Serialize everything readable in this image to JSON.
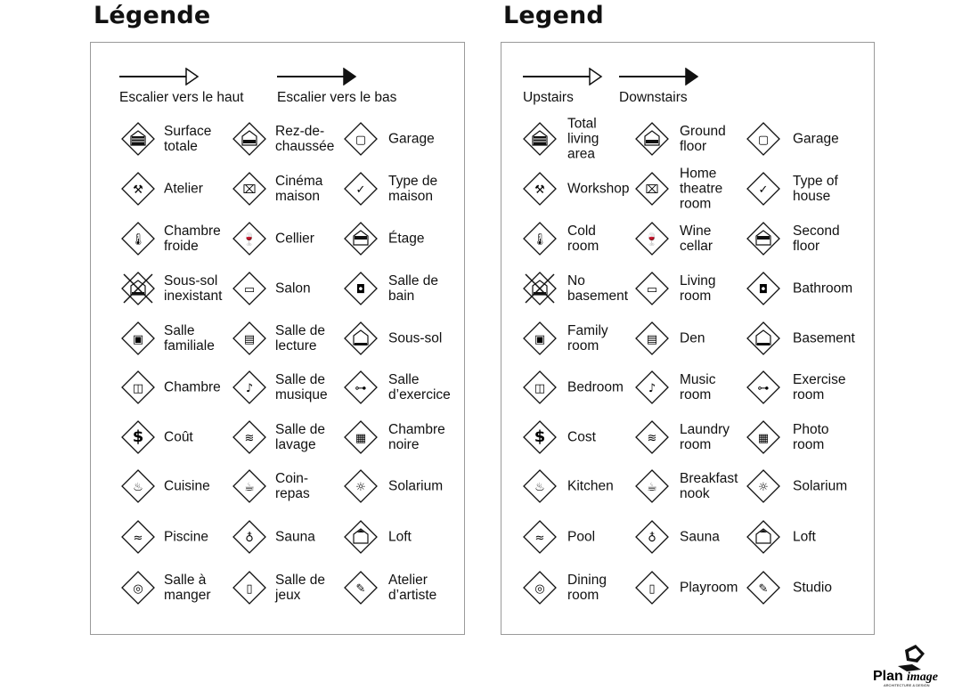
{
  "legends": [
    {
      "title": "Légende",
      "stairs_up": "Escalier vers le haut",
      "stairs_down": "Escalier vers le bas",
      "rows": [
        [
          {
            "label": "Surface\ntotale",
            "icon": "total-area-icon"
          },
          {
            "label": "Rez-de-\nchaussée",
            "icon": "ground-floor-icon"
          },
          {
            "label": "Garage",
            "icon": "garage-icon"
          }
        ],
        [
          {
            "label": "Atelier",
            "icon": "hammer-icon"
          },
          {
            "label": "Cinéma\nmaison",
            "icon": "projector-icon"
          },
          {
            "label": "Type de\nmaison",
            "icon": "house-check-icon"
          }
        ],
        [
          {
            "label": "Chambre\nfroide",
            "icon": "thermometer-icon"
          },
          {
            "label": "Cellier",
            "icon": "wine-icon"
          },
          {
            "label": "Étage",
            "icon": "second-floor-icon"
          }
        ],
        [
          {
            "label": "Sous-sol\ninexistant",
            "icon": "no-basement-icon"
          },
          {
            "label": "Salon",
            "icon": "sofa-icon"
          },
          {
            "label": "Salle de\nbain",
            "icon": "toilet-icon"
          }
        ],
        [
          {
            "label": "Salle\nfamiliale",
            "icon": "tv-icon"
          },
          {
            "label": "Salle de\nlecture",
            "icon": "book-icon"
          },
          {
            "label": "Sous-sol",
            "icon": "basement-icon"
          }
        ],
        [
          {
            "label": "Chambre",
            "icon": "bed-icon"
          },
          {
            "label": "Salle de\nmusique",
            "icon": "music-note-icon"
          },
          {
            "label": "Salle\nd’exercice",
            "icon": "weights-icon"
          }
        ],
        [
          {
            "label": "Coût",
            "icon": "dollar-icon"
          },
          {
            "label": "Salle de\nlavage",
            "icon": "laundry-icon"
          },
          {
            "label": "Chambre\nnoire",
            "icon": "camera-icon"
          }
        ],
        [
          {
            "label": "Cuisine",
            "icon": "pot-icon"
          },
          {
            "label": "Coin-\nrepas",
            "icon": "coffee-icon"
          },
          {
            "label": "Solarium",
            "icon": "sun-icon"
          }
        ],
        [
          {
            "label": "Piscine",
            "icon": "swimmer-icon"
          },
          {
            "label": "Sauna",
            "icon": "sauna-icon"
          },
          {
            "label": "Loft",
            "icon": "loft-icon"
          }
        ],
        [
          {
            "label": "Salle à\nmanger",
            "icon": "plate-icon"
          },
          {
            "label": "Salle de\njeux",
            "icon": "playroom-icon"
          },
          {
            "label": "Atelier\nd’artiste",
            "icon": "palette-icon"
          }
        ]
      ]
    },
    {
      "title": "Legend",
      "stairs_up": "Upstairs",
      "stairs_down": "Downstairs",
      "rows": [
        [
          {
            "label": "Total\nliving\narea",
            "icon": "total-area-icon"
          },
          {
            "label": "Ground\nfloor",
            "icon": "ground-floor-icon"
          },
          {
            "label": "Garage",
            "icon": "garage-icon"
          }
        ],
        [
          {
            "label": "Workshop",
            "icon": "hammer-icon"
          },
          {
            "label": "Home\ntheatre\nroom",
            "icon": "projector-icon"
          },
          {
            "label": "Type of\nhouse",
            "icon": "house-check-icon"
          }
        ],
        [
          {
            "label": "Cold\nroom",
            "icon": "thermometer-icon"
          },
          {
            "label": "Wine\ncellar",
            "icon": "wine-icon"
          },
          {
            "label": "Second\nfloor",
            "icon": "second-floor-icon"
          }
        ],
        [
          {
            "label": "No\nbasement",
            "icon": "no-basement-icon"
          },
          {
            "label": "Living\nroom",
            "icon": "sofa-icon"
          },
          {
            "label": "Bathroom",
            "icon": "toilet-icon"
          }
        ],
        [
          {
            "label": "Family\nroom",
            "icon": "tv-icon"
          },
          {
            "label": "Den",
            "icon": "book-icon"
          },
          {
            "label": "Basement",
            "icon": "basement-icon"
          }
        ],
        [
          {
            "label": "Bedroom",
            "icon": "bed-icon"
          },
          {
            "label": "Music\nroom",
            "icon": "music-note-icon"
          },
          {
            "label": "Exercise\nroom",
            "icon": "weights-icon"
          }
        ],
        [
          {
            "label": "Cost",
            "icon": "dollar-icon"
          },
          {
            "label": "Laundry\nroom",
            "icon": "laundry-icon"
          },
          {
            "label": "Photo\nroom",
            "icon": "camera-icon"
          }
        ],
        [
          {
            "label": "Kitchen",
            "icon": "pot-icon"
          },
          {
            "label": "Breakfast\nnook",
            "icon": "coffee-icon"
          },
          {
            "label": "Solarium",
            "icon": "sun-icon"
          }
        ],
        [
          {
            "label": "Pool",
            "icon": "swimmer-icon"
          },
          {
            "label": "Sauna",
            "icon": "sauna-icon"
          },
          {
            "label": "Loft",
            "icon": "loft-icon"
          }
        ],
        [
          {
            "label": "Dining\nroom",
            "icon": "plate-icon"
          },
          {
            "label": "Playroom",
            "icon": "playroom-icon"
          },
          {
            "label": "Studio",
            "icon": "palette-icon"
          }
        ]
      ]
    }
  ],
  "logo": {
    "name": "Planimage",
    "tagline": "ARCHITECTURE & DESIGN"
  }
}
